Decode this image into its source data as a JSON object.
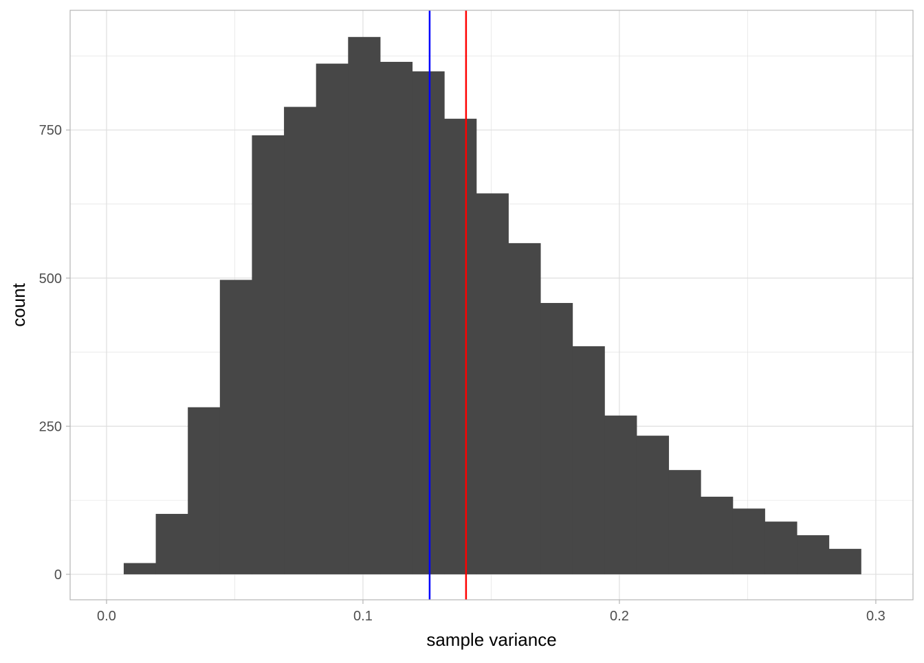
{
  "chart_data": {
    "type": "bar",
    "subtype": "histogram",
    "title": "",
    "xlabel": "sample variance",
    "ylabel": "count",
    "xlim": [
      -0.0142,
      0.3145
    ],
    "ylim": [
      -43,
      952
    ],
    "x_ticks": [
      0.0,
      0.1,
      0.2,
      0.3
    ],
    "x_tick_labels": [
      "0.0",
      "0.1",
      "0.2",
      "0.3"
    ],
    "y_ticks": [
      0,
      250,
      500,
      750
    ],
    "y_tick_labels": [
      "0",
      "250",
      "500",
      "750"
    ],
    "grid": true,
    "bin_start": 0.0067,
    "bin_width": 0.0125,
    "values": [
      19,
      102,
      282,
      497,
      741,
      789,
      862,
      907,
      865,
      849,
      769,
      643,
      559,
      458,
      385,
      268,
      234,
      176,
      131,
      111,
      89,
      66,
      43
    ],
    "vlines": [
      {
        "x": 0.126,
        "color": "#0000ff"
      },
      {
        "x": 0.1402,
        "color": "#ff0000"
      }
    ],
    "colors": {
      "bar": "#474747",
      "grid": "#dedede",
      "panel_border": "#b3b3b3",
      "tick_text": "#4d4d4d"
    }
  }
}
